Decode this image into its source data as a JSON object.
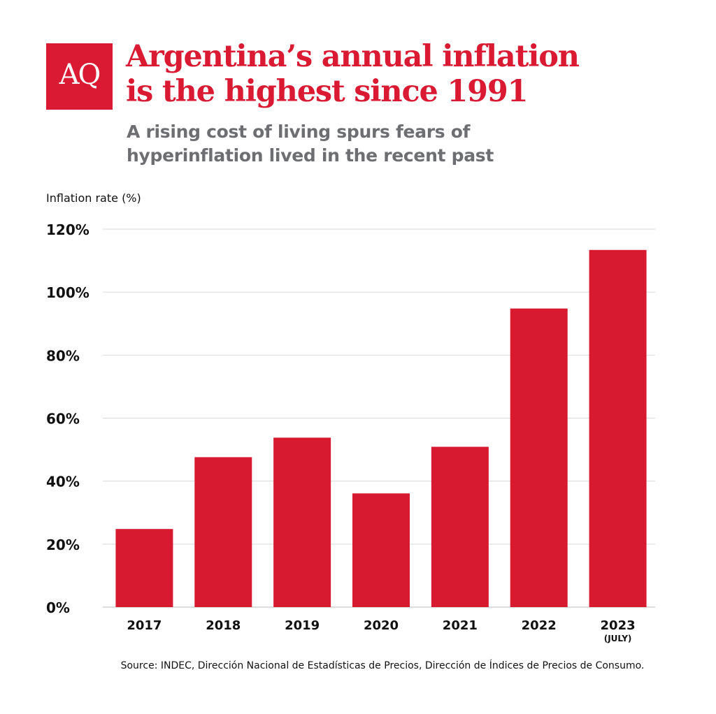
{
  "logo": {
    "text": "AQ",
    "color": "#da1a32"
  },
  "title_line1": "Argentina’s annual inflation",
  "title_line2": "is the highest since 1991",
  "subtitle_line1": "A rising cost of living spurs fears of",
  "subtitle_line2": "hyperinflation lived in the recent past",
  "source": "Source: INDEC, Dirección Nacional de Estadísticas de Precios, Dirección de Índices de Precios de Consumo.",
  "chart_data": {
    "type": "bar",
    "ylabel": "Inflation rate (%)",
    "categories": [
      "2017",
      "2018",
      "2019",
      "2020",
      "2021",
      "2022",
      "2023"
    ],
    "category_notes": [
      "",
      "",
      "",
      "",
      "",
      "",
      "(JULY)"
    ],
    "values": [
      24.8,
      47.6,
      53.8,
      36.1,
      50.9,
      94.8,
      113.4
    ],
    "ylim": [
      0,
      120
    ],
    "yticks": [
      0,
      20,
      40,
      60,
      80,
      100,
      120
    ],
    "ytick_labels": [
      "0%",
      "20%",
      "40%",
      "60%",
      "80%",
      "100%",
      "120%"
    ],
    "grid": true,
    "bar_color": "#d71a2f"
  }
}
